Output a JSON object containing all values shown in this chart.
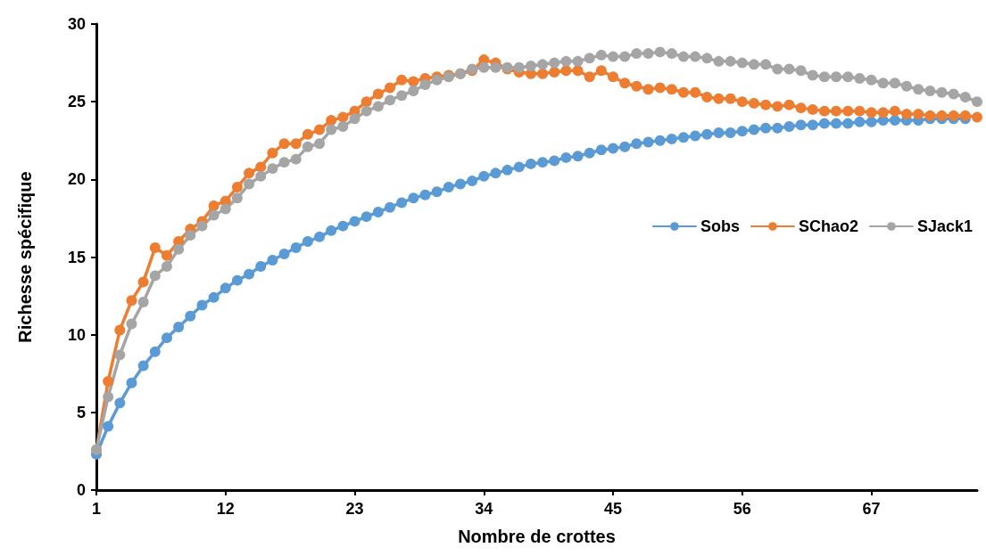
{
  "chart_data": {
    "type": "line",
    "xlabel": "Nombre de crottes",
    "ylabel": "Richesse spécifique",
    "categories": [
      "1",
      null,
      null,
      null,
      null,
      null,
      null,
      null,
      null,
      null,
      null,
      "12",
      null,
      null,
      null,
      null,
      null,
      null,
      null,
      null,
      null,
      null,
      "23",
      null,
      null,
      null,
      null,
      null,
      null,
      null,
      null,
      null,
      null,
      "34",
      null,
      null,
      null,
      null,
      null,
      null,
      null,
      null,
      null,
      null,
      "45",
      null,
      null,
      null,
      null,
      null,
      null,
      null,
      null,
      null,
      null,
      "56",
      null,
      null,
      null,
      null,
      null,
      null,
      null,
      null,
      null,
      null,
      "67",
      null,
      null,
      null,
      null,
      null,
      null,
      null,
      null,
      null
    ],
    "series": [
      {
        "name": "Sobs",
        "color": "#5b9bd5",
        "values": [
          2.3,
          4.1,
          5.6,
          6.9,
          8.0,
          8.9,
          9.8,
          10.5,
          11.2,
          11.9,
          12.4,
          13.0,
          13.5,
          13.9,
          14.4,
          14.8,
          15.2,
          15.6,
          16.0,
          16.3,
          16.7,
          17.0,
          17.3,
          17.6,
          17.9,
          18.2,
          18.5,
          18.8,
          19.0,
          19.2,
          19.5,
          19.7,
          19.9,
          20.2,
          20.4,
          20.6,
          20.8,
          21.0,
          21.1,
          21.2,
          21.4,
          21.5,
          21.7,
          21.9,
          22.0,
          22.1,
          22.3,
          22.4,
          22.5,
          22.6,
          22.7,
          22.8,
          22.9,
          23.0,
          23.0,
          23.1,
          23.2,
          23.3,
          23.3,
          23.4,
          23.5,
          23.5,
          23.6,
          23.6,
          23.6,
          23.7,
          23.7,
          23.8,
          23.8,
          23.8,
          23.8,
          23.9,
          23.9,
          23.9,
          23.9,
          null
        ]
      },
      {
        "name": "SChao2",
        "color": "#ed7d31",
        "values": [
          2.6,
          7.0,
          10.3,
          12.2,
          13.4,
          15.6,
          15.1,
          16.0,
          16.8,
          17.3,
          18.3,
          18.6,
          19.5,
          20.4,
          20.8,
          21.7,
          22.3,
          22.3,
          22.9,
          23.2,
          23.8,
          24.0,
          24.4,
          25.0,
          25.5,
          25.9,
          26.4,
          26.3,
          26.5,
          26.6,
          26.7,
          26.8,
          27.0,
          27.7,
          27.5,
          27.1,
          26.9,
          26.8,
          26.8,
          26.9,
          27.0,
          27.0,
          26.6,
          27.0,
          26.6,
          26.2,
          26.0,
          25.8,
          25.9,
          25.8,
          25.6,
          25.6,
          25.3,
          25.2,
          25.2,
          25.0,
          24.9,
          24.8,
          24.7,
          24.8,
          24.6,
          24.5,
          24.4,
          24.4,
          24.4,
          24.4,
          24.3,
          24.3,
          24.4,
          24.2,
          24.2,
          24.1,
          24.1,
          24.1,
          24.1,
          24.0
        ]
      },
      {
        "name": "SJack1",
        "color": "#a5a5a5",
        "values": [
          2.6,
          6.0,
          8.7,
          10.7,
          12.1,
          13.8,
          14.4,
          15.5,
          16.4,
          17.0,
          17.7,
          18.1,
          18.8,
          19.7,
          20.2,
          20.7,
          21.1,
          21.3,
          22.1,
          22.3,
          23.2,
          23.4,
          23.9,
          24.4,
          24.7,
          25.1,
          25.4,
          25.7,
          26.1,
          26.4,
          26.6,
          26.8,
          27.1,
          27.2,
          27.2,
          27.2,
          27.2,
          27.3,
          27.4,
          27.5,
          27.6,
          27.6,
          27.8,
          28.0,
          27.9,
          27.9,
          28.1,
          28.1,
          28.2,
          28.1,
          27.9,
          27.9,
          27.8,
          27.6,
          27.6,
          27.5,
          27.4,
          27.4,
          27.1,
          27.1,
          27.0,
          26.7,
          26.6,
          26.6,
          26.6,
          26.5,
          26.4,
          26.2,
          26.2,
          26.0,
          25.8,
          25.7,
          25.6,
          25.5,
          25.3,
          25.0
        ]
      }
    ],
    "ylim": [
      0,
      30
    ],
    "yticks": [
      0,
      5,
      10,
      15,
      20,
      25,
      30
    ],
    "grid": false,
    "legend": "right",
    "marker": "circle",
    "line_style": "solid"
  }
}
